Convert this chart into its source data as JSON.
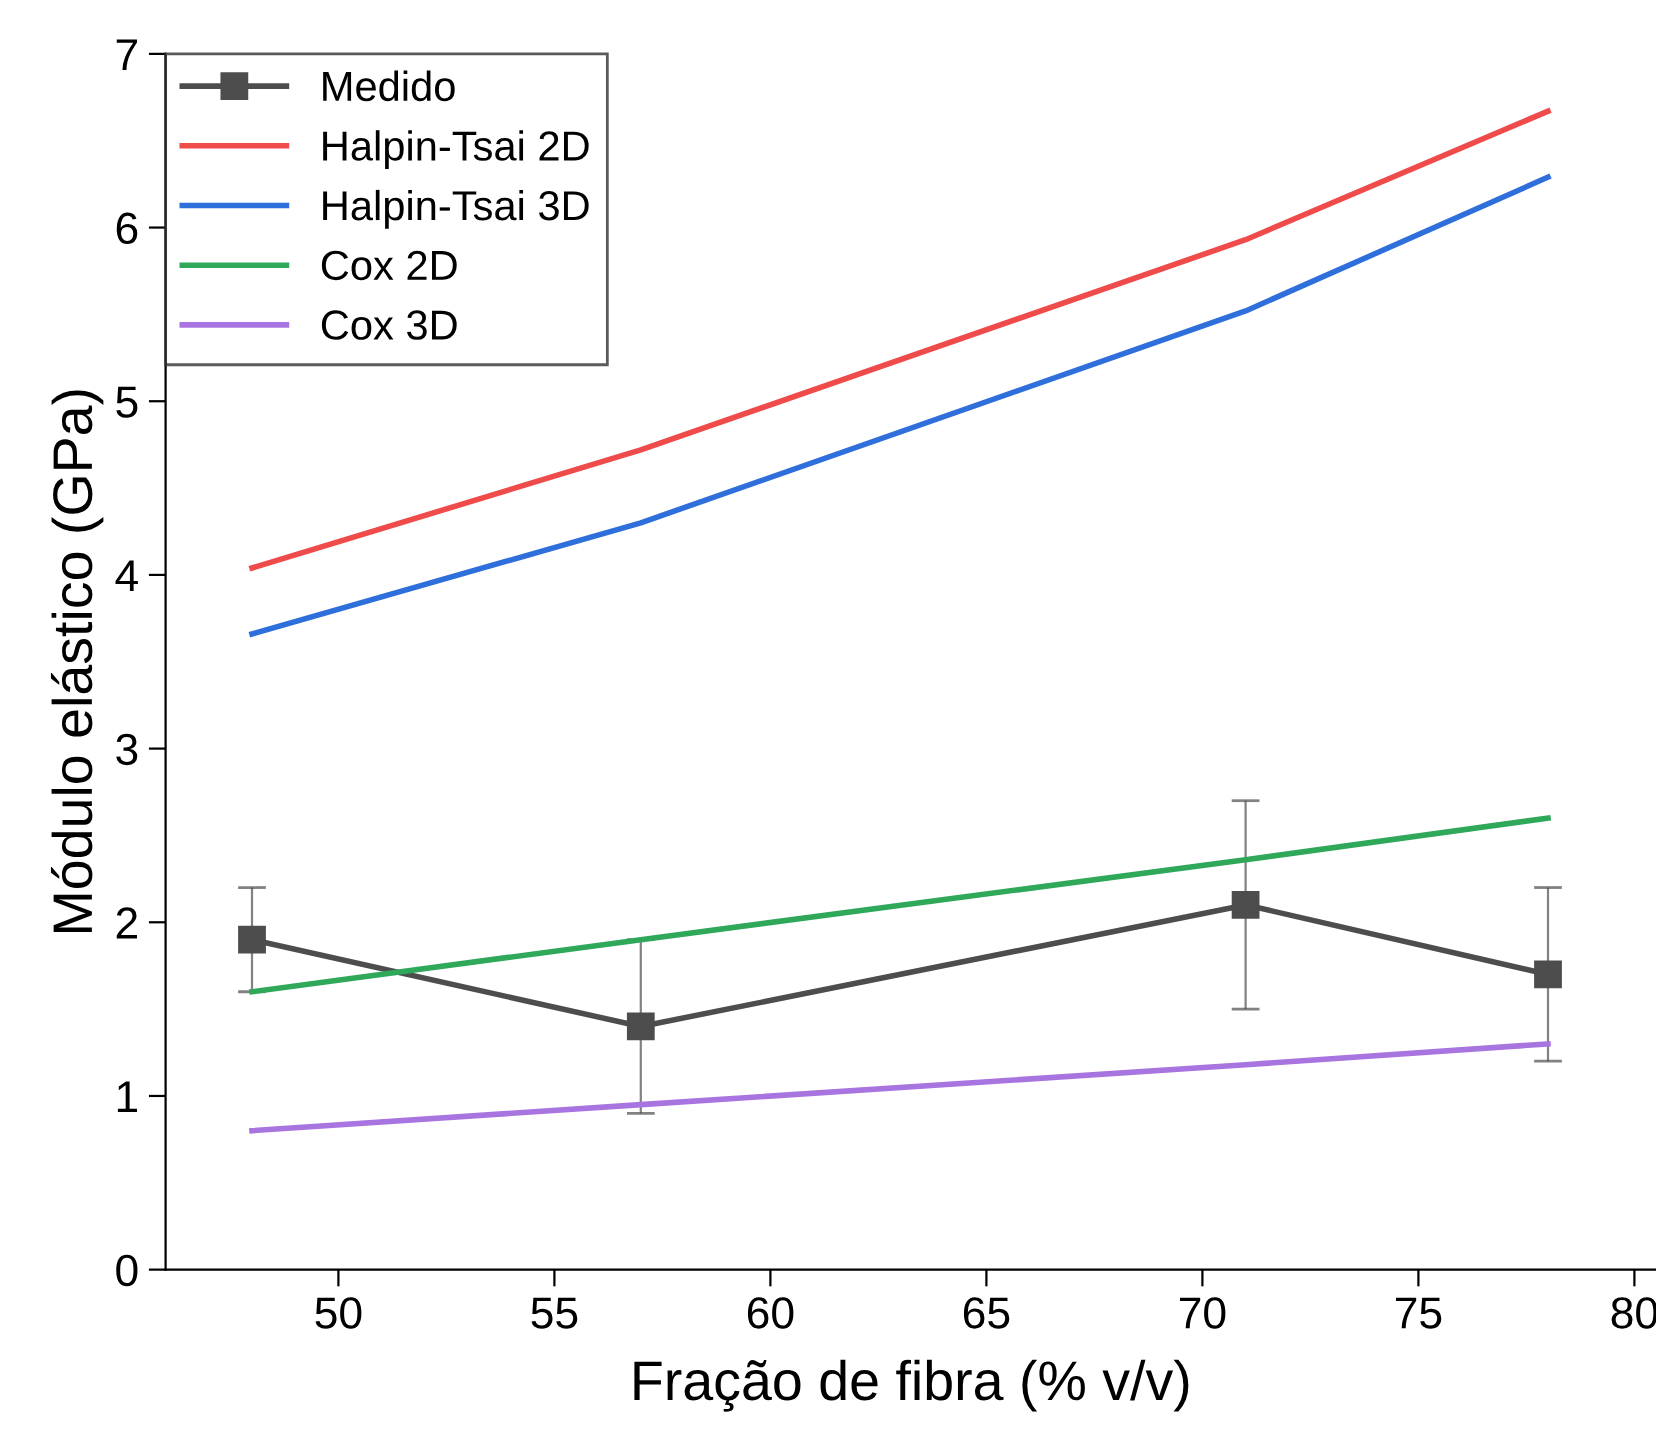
{
  "chart_data": {
    "type": "line",
    "xlabel": "Fração de fibra (% v/v)",
    "ylabel": "Módulo elástico (GPa)",
    "x": [
      48,
      57,
      71,
      78
    ],
    "series": [
      {
        "name": "Medido",
        "color": "#4d4d4d",
        "values": [
          1.9,
          1.4,
          2.1,
          1.7
        ],
        "errors": [
          0.3,
          0.5,
          0.6,
          0.5
        ],
        "marker": "square"
      },
      {
        "name": "Halpin-Tsai 2D",
        "color": "#f04b4b",
        "values": [
          4.04,
          4.72,
          5.93,
          6.67
        ]
      },
      {
        "name": "Halpin-Tsai 3D",
        "color": "#2f6fdc",
        "values": [
          3.66,
          4.3,
          5.52,
          6.29
        ]
      },
      {
        "name": "Cox 2D",
        "color": "#2fa85a",
        "values": [
          1.6,
          1.9,
          2.36,
          2.6
        ]
      },
      {
        "name": "Cox 3D",
        "color": "#a875e0",
        "values": [
          0.8,
          0.95,
          1.18,
          1.3
        ]
      }
    ],
    "xlim": [
      46,
      80.5
    ],
    "xticks": [
      50,
      55,
      60,
      65,
      70,
      75,
      80
    ],
    "ylim": [
      0,
      7
    ],
    "yticks": [
      0,
      1,
      2,
      3,
      4,
      5,
      6,
      7
    ],
    "grid": false,
    "legend": "top left"
  }
}
